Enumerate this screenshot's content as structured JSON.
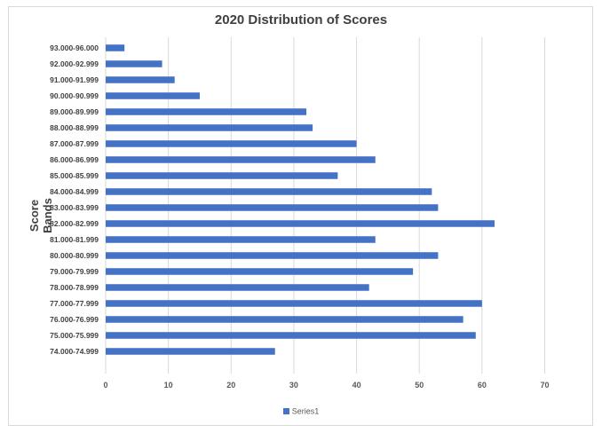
{
  "chart_data": {
    "type": "bar",
    "orientation": "horizontal",
    "title": "2020 Distribution of Scores",
    "xlabel": "",
    "ylabel": "Score Bands",
    "xlim": [
      0,
      70
    ],
    "x_ticks": [
      0,
      10,
      20,
      30,
      40,
      50,
      60,
      70
    ],
    "grid": true,
    "legend_position": "bottom",
    "bar_color": "#4472c4",
    "categories": [
      "93.000-96.000",
      "92.000-92.999",
      "91.000-91.999",
      "90.000-90.999",
      "89.000-89.999",
      "88.000-88.999",
      "87.000-87.999",
      "86.000-86.999",
      "85.000-85.999",
      "84.000-84.999",
      "83.000-83.999",
      "82.000-82.999",
      "81.000-81.999",
      "80.000-80.999",
      "79.000-79.999",
      "78.000-78.999",
      "77.000-77.999",
      "76.000-76.999",
      "75.000-75.999",
      "74.000-74.999"
    ],
    "series": [
      {
        "name": "Series1",
        "values": [
          3,
          9,
          11,
          15,
          32,
          33,
          40,
          43,
          37,
          52,
          53,
          62,
          43,
          53,
          49,
          42,
          60,
          57,
          59,
          27
        ]
      }
    ]
  }
}
